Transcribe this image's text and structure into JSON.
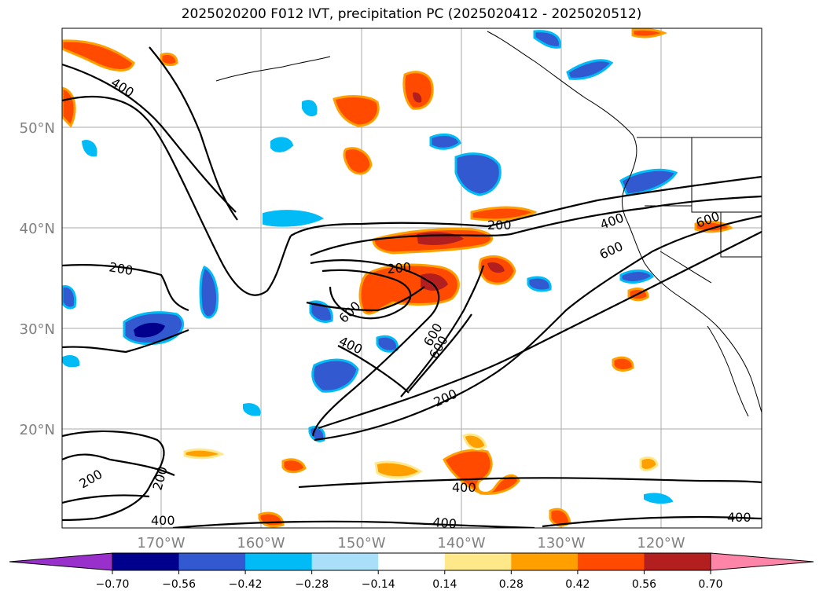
{
  "title": "2025020200 F012 IVT, precipitation PC (2025020412 - 2025020512)",
  "lat_labels": [
    "50°N",
    "40°N",
    "30°N",
    "20°N"
  ],
  "lon_labels": [
    "170°W",
    "160°W",
    "150°W",
    "140°W",
    "130°W",
    "120°W"
  ],
  "ivt_contour_labels": [
    "400",
    "400",
    "200",
    "200",
    "200",
    "600",
    "400",
    "600",
    "600",
    "600",
    "200",
    "200",
    "200",
    "400",
    "400",
    "400",
    "600",
    "400"
  ],
  "colorbar": {
    "ticks": [
      "−0.70",
      "−0.56",
      "−0.42",
      "−0.28",
      "−0.14",
      "0.14",
      "0.28",
      "0.42",
      "0.56",
      "0.70"
    ],
    "colors": [
      "#9a30cc",
      "#00008c",
      "#3259d0",
      "#00bbf5",
      "#aadffa",
      "#ffffff",
      "#ffe88a",
      "#ffa000",
      "#ff4a00",
      "#b31f1f",
      "#ff85a8"
    ]
  }
}
